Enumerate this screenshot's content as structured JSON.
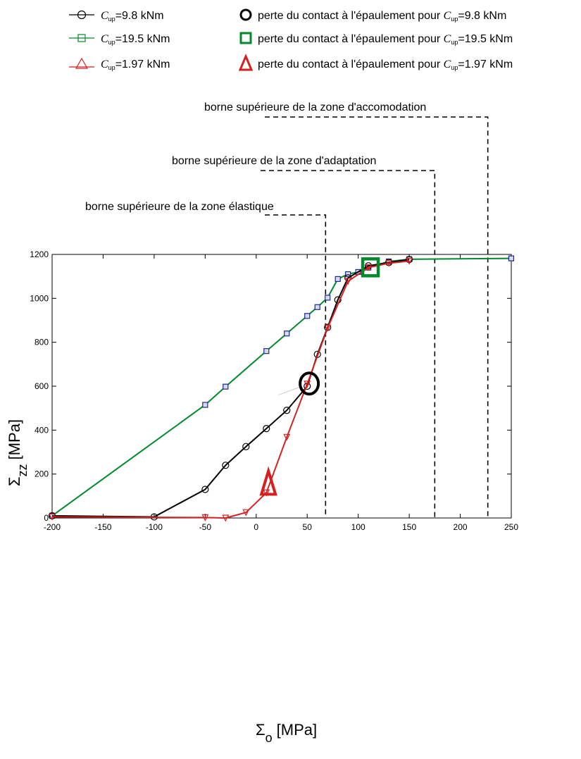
{
  "chart_data": {
    "type": "line",
    "xlabel": "Σ",
    "xlabel_sub": "o",
    "xlabel_unit": "[MPa]",
    "ylabel": "Σ",
    "ylabel_sub": "zz",
    "ylabel_unit": "[MPa]",
    "xlim": [
      -200,
      250
    ],
    "ylim": [
      0,
      1200
    ],
    "xticks": [
      "-200",
      "-150",
      "-100",
      "-50",
      "0",
      "50",
      "100",
      "150",
      "200",
      "250"
    ],
    "yticks": [
      "0",
      "200",
      "400",
      "600",
      "800",
      "1000",
      "1200"
    ],
    "grid": false,
    "legend": [
      {
        "symbol": "C",
        "sub": "up",
        "text": "=9.8 kNm",
        "marker": "circle",
        "color": "#000000"
      },
      {
        "symbol": "C",
        "sub": "up",
        "text": "=19.5 kNm",
        "marker": "square",
        "color": "#008a2e"
      },
      {
        "symbol": "C",
        "sub": "up",
        "text": "=1.97 kNm",
        "marker": "triangle",
        "color": "#d42020"
      }
    ],
    "legend_contact": [
      {
        "text": "perte du contact à l'épaulement pour ",
        "symbol": "C",
        "sub": "up",
        "value": "=9.8 kNm",
        "marker": "circle",
        "color": "#000000"
      },
      {
        "text": "perte du contact à l'épaulement pour ",
        "symbol": "C",
        "sub": "up",
        "value": "=19.5 kNm",
        "marker": "square",
        "color": "#008a2e"
      },
      {
        "text": "perte du contact à l'épaulement pour ",
        "symbol": "C",
        "sub": "up",
        "value": "=1.97 kNm",
        "marker": "triangle",
        "color": "#d42020"
      }
    ],
    "series": [
      {
        "name": "C_up=9.8 kNm",
        "color": "#000000",
        "marker": "circle",
        "x": [
          -200,
          -100,
          -50,
          -30,
          -10,
          10,
          30,
          50,
          60,
          70,
          80,
          90,
          110,
          130,
          150
        ],
        "y": [
          10,
          5,
          130,
          240,
          325,
          407,
          490,
          600,
          745,
          868,
          993,
          1093,
          1148,
          1163,
          1177
        ]
      },
      {
        "name": "C_up=19.5 kNm",
        "color": "#008a2e",
        "marker": "square",
        "x": [
          -200,
          -50,
          -30,
          10,
          30,
          50,
          60,
          70,
          80,
          90,
          100,
          110,
          130,
          150,
          250
        ],
        "y": [
          10,
          515,
          598,
          760,
          840,
          920,
          960,
          1003,
          1088,
          1110,
          1120,
          1140,
          1168,
          1178,
          1182
        ]
      },
      {
        "name": "C_up=1.97 kNm",
        "color": "#d42020",
        "marker": "triangle",
        "x": [
          -200,
          -50,
          -30,
          -10,
          10,
          30,
          50,
          70,
          90,
          110,
          130,
          150
        ],
        "y": [
          5,
          2,
          0,
          25,
          115,
          368,
          610,
          865,
          1078,
          1140,
          1160,
          1170
        ]
      }
    ],
    "contact_markers": [
      {
        "series": "C_up=9.8 kNm",
        "marker": "circle",
        "color": "#000000",
        "x": 52,
        "y": 612
      },
      {
        "series": "C_up=19.5 kNm",
        "marker": "square",
        "color": "#008a2e",
        "x": 112,
        "y": 1138
      },
      {
        "series": "C_up=1.97 kNm",
        "marker": "triangle",
        "color": "#d42020",
        "x": 12,
        "y": 140
      }
    ],
    "bounds": [
      {
        "label": "borne supérieure de la zone élastique",
        "x": 68
      },
      {
        "label": "borne supérieure de la zone d'adaptation",
        "x": 175
      },
      {
        "label": "borne supérieure de la zone d'accomodation",
        "x": 227
      }
    ]
  }
}
